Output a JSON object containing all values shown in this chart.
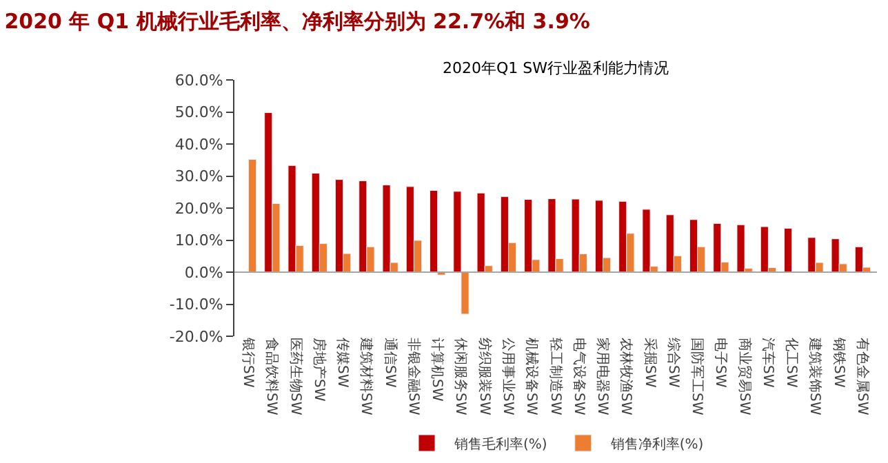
{
  "chart_data": {
    "type": "bar",
    "title": "2020 年 Q1 机械行业毛利率、净利率分别为 22.7%和 3.9%",
    "subtitle": "2020年Q1 SW行业盈利能力情况",
    "categories": [
      "银行SW",
      "食品饮料SW",
      "医药生物SW",
      "房地产SW",
      "传媒SW",
      "建筑材料SW",
      "通信SW",
      "非银金融SW",
      "计算机SW",
      "休闲服务SW",
      "纺织服装SW",
      "公用事业SW",
      "机械设备SW",
      "轻工制造SW",
      "电气设备SW",
      "家用电器SW",
      "农林牧渔SW",
      "采掘SW",
      "综合SW",
      "国防军工SW",
      "电子SW",
      "商业贸易SW",
      "汽车SW",
      "化工SW",
      "建筑装饰SW",
      "钢铁SW",
      "有色金属SW"
    ],
    "series": [
      {
        "name": "销售毛利率(%)",
        "color": "#c00000",
        "values": [
          null,
          49.8,
          33.3,
          30.9,
          28.9,
          28.5,
          27.2,
          26.7,
          25.5,
          25.2,
          24.7,
          23.6,
          22.7,
          22.9,
          22.8,
          22.4,
          22.1,
          19.6,
          17.9,
          16.4,
          15.2,
          14.8,
          14.2,
          13.7,
          10.8,
          10.4,
          7.9
        ]
      },
      {
        "name": "销售净利率(%)",
        "color": "#ed7d31",
        "values": [
          35.2,
          21.4,
          8.3,
          8.9,
          5.8,
          7.9,
          3.0,
          9.9,
          -0.9,
          -13.1,
          2.0,
          9.2,
          3.9,
          4.2,
          5.7,
          4.5,
          12.1,
          1.8,
          5.1,
          7.9,
          3.1,
          1.2,
          1.4,
          0.1,
          3.0,
          2.6,
          1.5
        ]
      }
    ],
    "ylim": [
      -20,
      60
    ],
    "yticks": [
      {
        "value": -20,
        "label": "-20.0%"
      },
      {
        "value": -10,
        "label": "-10.0%"
      },
      {
        "value": 0,
        "label": "0.0%"
      },
      {
        "value": 10,
        "label": "10.0%"
      },
      {
        "value": 20,
        "label": "20.0%"
      },
      {
        "value": 30,
        "label": "30.0%"
      },
      {
        "value": 40,
        "label": "40.0%"
      },
      {
        "value": 50,
        "label": "50.0%"
      },
      {
        "value": 60,
        "label": "60.0%"
      }
    ],
    "ref_lines": [
      {
        "axis": "y",
        "value": 0,
        "color": "#a6a6a6"
      }
    ],
    "legend": "bottom"
  }
}
